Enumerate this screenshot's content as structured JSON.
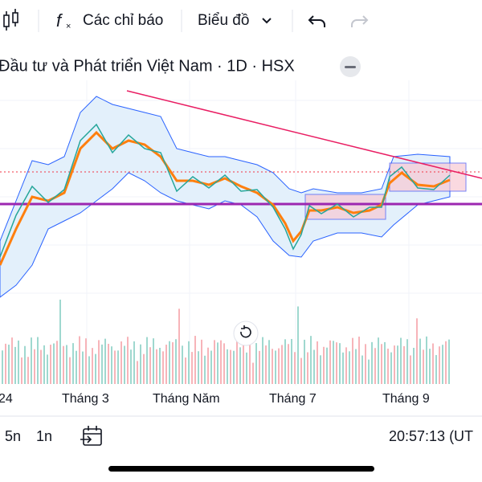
{
  "toolbar": {
    "indicators": "Các chỉ báo",
    "chart_type": "Biểu đồ"
  },
  "header": {
    "title": "Đầu tư và Phát triển Việt Nam · 1D · HSX"
  },
  "x_axis": {
    "labels": [
      "24",
      "Tháng 3",
      "Tháng Năm",
      "Tháng 7",
      "Tháng 9"
    ]
  },
  "footer": {
    "ranges": [
      "5n",
      "1n"
    ],
    "clock": "20:57:13 (UT"
  }
}
